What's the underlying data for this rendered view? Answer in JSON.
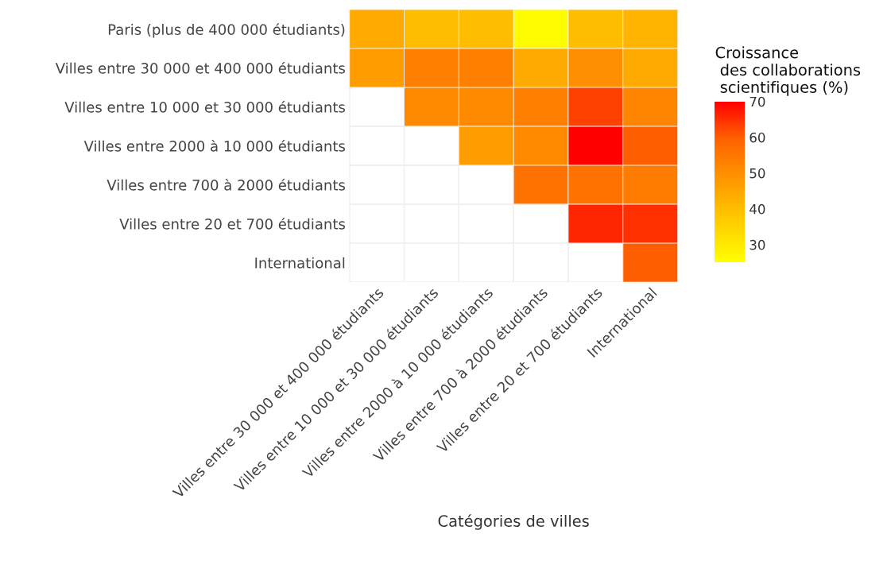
{
  "chart_data": {
    "type": "heatmap",
    "xlabel": "Catégories de villes",
    "clabel": "Croissance\n des collaborations\n scientifiques (%)",
    "categories": [
      "Villes entre 30 000 et 400 000 étudiants",
      "Villes entre 10 000 et 30 000 étudiants",
      "Villes entre 2000 à 10 000 étudiants",
      "Villes entre 700 à 2000 étudiants",
      "Villes entre 20 et 700 étudiants",
      "International"
    ],
    "y_categories": [
      "Paris (plus de 400 000 étudiants)",
      "Villes entre 30 000 et 400 000 étudiants",
      "Villes entre 10 000 et 30 000 étudiants",
      "Villes entre 2000 à 10 000 étudiants",
      "Villes entre 700 à 2000 étudiants",
      "Villes entre 20 et 700 étudiants",
      "International"
    ],
    "cells": [
      [
        44,
        40,
        40,
        26,
        40,
        42
      ],
      [
        47,
        53,
        53,
        44,
        50,
        44
      ],
      [
        null,
        51,
        51,
        53,
        63,
        52
      ],
      [
        null,
        null,
        47,
        51,
        70,
        60
      ],
      [
        null,
        null,
        null,
        56,
        56,
        54
      ],
      [
        null,
        null,
        null,
        null,
        66,
        65
      ],
      [
        null,
        null,
        null,
        null,
        null,
        60
      ]
    ],
    "clim": [
      25,
      70
    ],
    "cticks": [
      30,
      40,
      50,
      60,
      70
    ],
    "grid": true
  }
}
